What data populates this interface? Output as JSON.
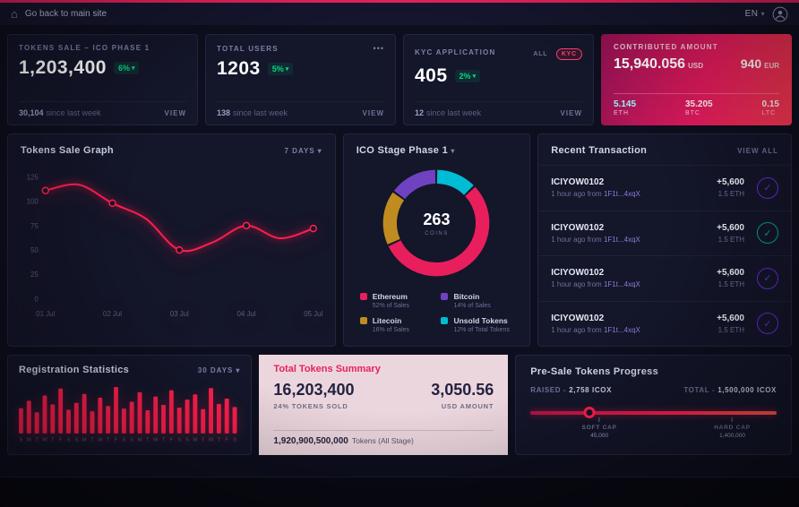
{
  "topbar": {
    "back_link": "Go back to main site",
    "language": "EN"
  },
  "stats": [
    {
      "title": "TOKENS SALE – ICO PHASE 1",
      "value": "1,203,400",
      "badge": "6%",
      "sub_value": "30,104",
      "sub_label": "since last week",
      "action": "VIEW"
    },
    {
      "title": "TOTAL USERS",
      "menu_icon": "•••",
      "value": "1203",
      "badge": "5%",
      "sub_value": "138",
      "sub_label": "since last week",
      "action": "VIEW"
    },
    {
      "title": "KYC APPLICATION",
      "tabs": {
        "all": "ALL",
        "kyc": "KYC"
      },
      "value": "405",
      "badge": "2%",
      "sub_value": "12",
      "sub_label": "since last week",
      "action": "VIEW"
    }
  ],
  "contributed": {
    "title": "CONTRIBUTED AMOUNT",
    "primary_value": "15,940.056",
    "primary_unit": "USD",
    "secondary_value": "940",
    "secondary_unit": "EUR",
    "breakdown": [
      {
        "value": "5.145",
        "unit": "ETH"
      },
      {
        "value": "35.205",
        "unit": "BTC"
      },
      {
        "value": "0.15",
        "unit": "LTC"
      }
    ]
  },
  "tokens_sale_graph": {
    "range_label": "7 DAYS"
  },
  "registration": {
    "range_label": "30 DAYS"
  },
  "transactions": {
    "title": "Recent Transaction",
    "view_all": "VIEW ALL",
    "items": [
      {
        "id": "ICIYOW0102",
        "time": "1 hour ago from",
        "address": "1F1t...4xqX",
        "amount": "+5,600",
        "crypto": "1.5 ETH",
        "status_color": "#7b2ff7"
      },
      {
        "id": "ICIYOW0102",
        "time": "1 hour ago from",
        "address": "1F1t...4xqX",
        "amount": "+5,600",
        "crypto": "1.5 ETH",
        "status_color": "#00bfa5"
      },
      {
        "id": "ICIYOW0102",
        "time": "1 hour ago from",
        "address": "1F1t...4xqX",
        "amount": "+5,600",
        "crypto": "1.5 ETH",
        "status_color": "#7b2ff7"
      },
      {
        "id": "ICIYOW0102",
        "time": "1 hour ago from",
        "address": "1F1t...4xqX",
        "amount": "+5,600",
        "crypto": "1.5 ETH",
        "status_color": "#7b2ff7"
      }
    ]
  },
  "summary": {
    "title": "Total Tokens Summary",
    "tokens_value": "16,203,400",
    "tokens_label": "24% TOKENS SOLD",
    "usd_value": "3,050.56",
    "usd_label": "USD AMOUNT",
    "total_value": "1,920,900,500,000",
    "total_label": "Tokens  (All Stage)"
  },
  "presale": {
    "title": "Pre-Sale Tokens Progress",
    "raised_label": "RAISED -",
    "raised_value": "2,758 ICOX",
    "total_label": "TOTAL -",
    "total_value": "1,500,000 ICOX",
    "soft_cap_label": "SOFT CAP",
    "soft_cap_value": "45,000",
    "hard_cap_label": "HARD CAP",
    "hard_cap_value": "1,400,000",
    "progress_percent": 24,
    "soft_cap_pos": 28,
    "hard_cap_pos": 82
  },
  "chart_data": [
    {
      "type": "line",
      "title": "Tokens Sale Graph",
      "x": [
        "01 Jul",
        "02 Jul",
        "03 Jul",
        "04 Jul",
        "05 Jul"
      ],
      "values": [
        111,
        117,
        98,
        82,
        50,
        58,
        75,
        62,
        72
      ],
      "marker_indices": [
        0,
        2,
        4,
        6,
        8
      ],
      "yticks": [
        0,
        25,
        50,
        75,
        100,
        125
      ],
      "ylim": [
        0,
        132
      ],
      "color": "#ff1f4e",
      "grid": false,
      "xlabel": "",
      "ylabel": ""
    },
    {
      "type": "pie",
      "title": "ICO Stage Phase 1",
      "center_value": "263",
      "center_label": "COINS",
      "slices": [
        {
          "label": "Ethereum",
          "sublabel": "52% of Sales",
          "value": 52,
          "color": "#e91e5d"
        },
        {
          "label": "Bitcoin",
          "sublabel": "14% of Sales",
          "value": 14,
          "color": "#6f42c1"
        },
        {
          "label": "Litecoin",
          "sublabel": "16% of Sales",
          "value": 16,
          "color": "#c08c1f"
        },
        {
          "label": "Unsold Tokens",
          "sublabel": "12% of Total Tokens",
          "value": 12,
          "color": "#00bcd4"
        }
      ],
      "draw_order": [
        3,
        0,
        2,
        1
      ],
      "legend_position": "bottom"
    },
    {
      "type": "bar",
      "title": "Registration Statistics",
      "categories": [
        "S",
        "M",
        "T",
        "W",
        "T",
        "F",
        "S",
        "S",
        "M",
        "T",
        "W",
        "T",
        "F",
        "S",
        "S",
        "M",
        "T",
        "W",
        "T",
        "F",
        "S",
        "S",
        "M",
        "T",
        "W",
        "T",
        "F",
        "S"
      ],
      "values": [
        48,
        62,
        40,
        72,
        55,
        85,
        45,
        58,
        75,
        42,
        68,
        52,
        88,
        47,
        60,
        78,
        44,
        70,
        54,
        82,
        49,
        64,
        74,
        46,
        86,
        56,
        66,
        50
      ],
      "ylim": [
        0,
        100
      ],
      "color": "#ff1f4e",
      "xlabel": "",
      "ylabel": ""
    }
  ]
}
